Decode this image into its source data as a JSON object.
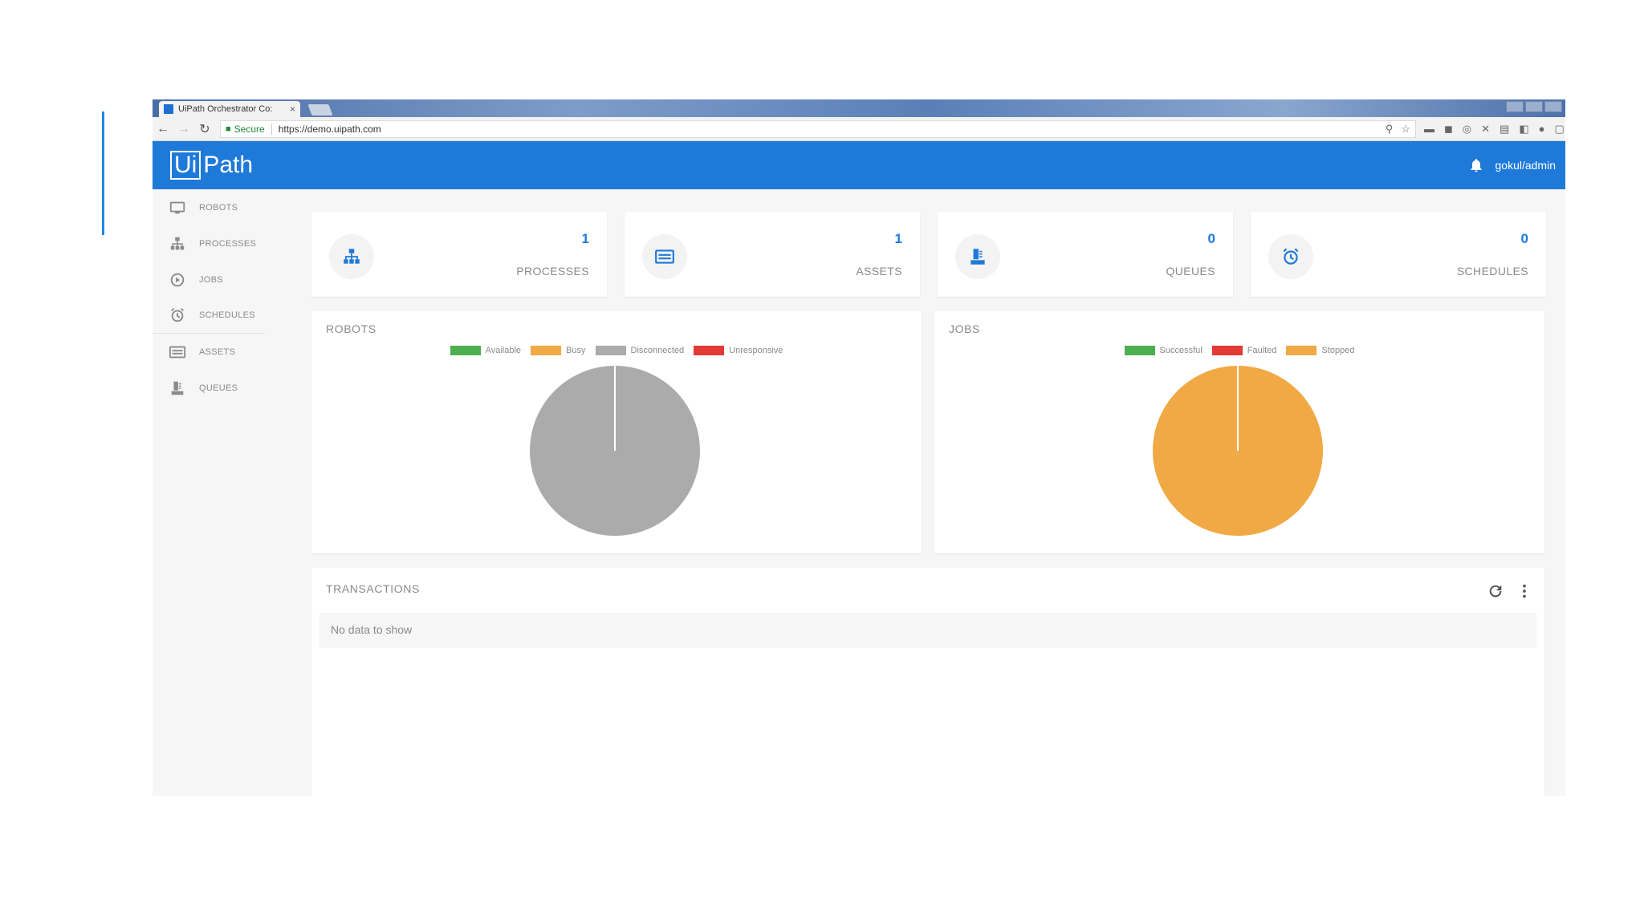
{
  "browser": {
    "tab_title": "UiPath Orchestrator Co:",
    "tab_close": "×",
    "secure_label": "Secure",
    "url": "https://demo.uipath.com"
  },
  "header": {
    "logo_ui": "Ui",
    "logo_path": "Path",
    "user": "gokul/admin"
  },
  "sidebar": {
    "items": [
      {
        "label": "ROBOTS",
        "icon": "monitor-icon"
      },
      {
        "label": "PROCESSES",
        "icon": "sitemap-icon"
      },
      {
        "label": "JOBS",
        "icon": "play-circle-icon"
      },
      {
        "label": "SCHEDULES",
        "icon": "alarm-clock-icon"
      },
      {
        "label": "ASSETS",
        "icon": "list-box-icon"
      },
      {
        "label": "QUEUES",
        "icon": "stack-icon"
      }
    ]
  },
  "stats": [
    {
      "value": "1",
      "label": "PROCESSES",
      "icon": "sitemap-icon"
    },
    {
      "value": "1",
      "label": "ASSETS",
      "icon": "list-box-icon"
    },
    {
      "value": "0",
      "label": "QUEUES",
      "icon": "stack-icon"
    },
    {
      "value": "0",
      "label": "SCHEDULES",
      "icon": "alarm-clock-icon"
    }
  ],
  "robots_panel": {
    "title": "ROBOTS"
  },
  "jobs_panel": {
    "title": "JOBS"
  },
  "transactions": {
    "title": "TRANSACTIONS",
    "empty_text": "No data to show"
  },
  "chart_data": [
    {
      "type": "pie",
      "title": "ROBOTS",
      "categories": [
        "Available",
        "Busy",
        "Disconnected",
        "Unresponsive"
      ],
      "values": [
        0,
        0,
        1,
        0
      ],
      "colors": [
        "#4caf50",
        "#f0a945",
        "#ababab",
        "#e53935"
      ],
      "legend": "top"
    },
    {
      "type": "pie",
      "title": "JOBS",
      "categories": [
        "Successful",
        "Faulted",
        "Stopped"
      ],
      "values": [
        0,
        0,
        1
      ],
      "colors": [
        "#4caf50",
        "#e53935",
        "#f0a945"
      ],
      "legend": "top"
    }
  ],
  "colors": {
    "accent": "#1e79d9",
    "panel_bg": "#f6f6f6"
  }
}
